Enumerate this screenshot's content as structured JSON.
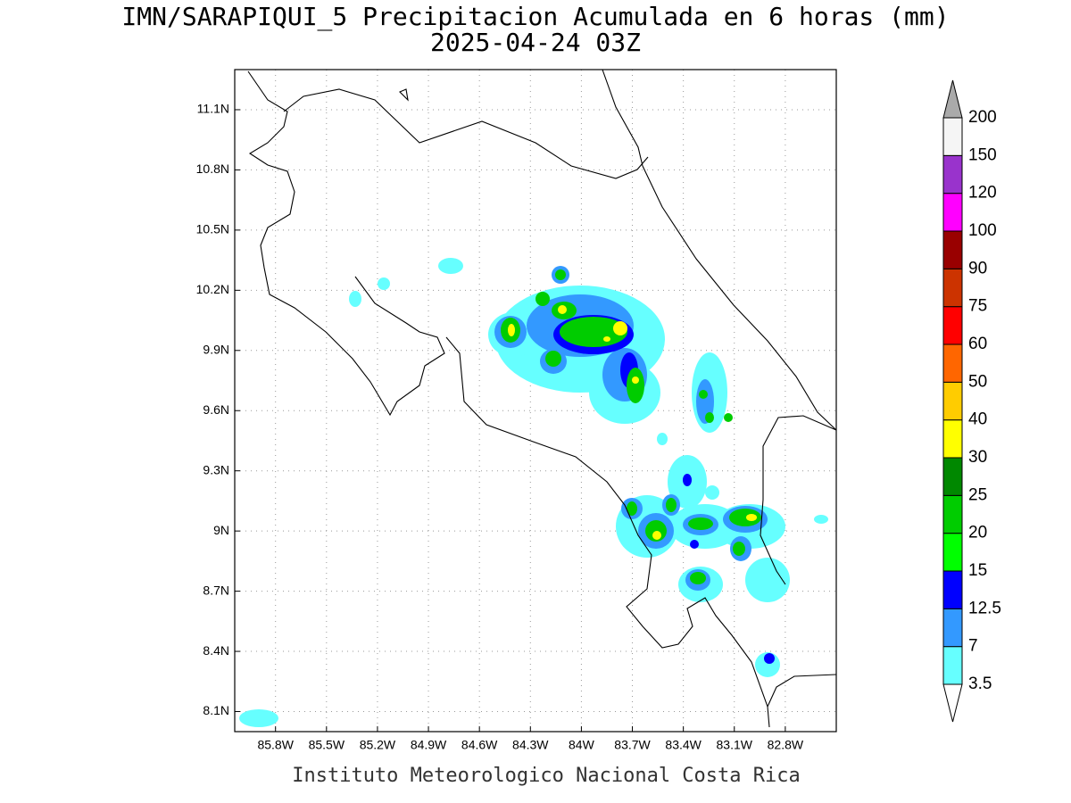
{
  "chart_data": {
    "type": "map",
    "title": "IMN/SARAPIQUI_5 Precipitacion Acumulada en 6 horas (mm)",
    "subtitle": "2025-04-24 03Z",
    "footer": "Instituto Meteorologico Nacional Costa Rica",
    "xlim": [
      -86.04,
      -82.5
    ],
    "ylim": [
      8.0,
      11.3
    ],
    "xticks": [
      {
        "value": -85.8,
        "label": "85.8W"
      },
      {
        "value": -85.5,
        "label": "85.5W"
      },
      {
        "value": -85.2,
        "label": "85.2W"
      },
      {
        "value": -84.9,
        "label": "84.9W"
      },
      {
        "value": -84.6,
        "label": "84.6W"
      },
      {
        "value": -84.3,
        "label": "84.3W"
      },
      {
        "value": -84.0,
        "label": "84W"
      },
      {
        "value": -83.7,
        "label": "83.7W"
      },
      {
        "value": -83.4,
        "label": "83.4W"
      },
      {
        "value": -83.1,
        "label": "83.1W"
      },
      {
        "value": -82.8,
        "label": "82.8W"
      }
    ],
    "yticks": [
      {
        "value": 8.1,
        "label": "8.1N"
      },
      {
        "value": 8.4,
        "label": "8.4N"
      },
      {
        "value": 8.7,
        "label": "8.7N"
      },
      {
        "value": 9.0,
        "label": "9N"
      },
      {
        "value": 9.3,
        "label": "9.3N"
      },
      {
        "value": 9.6,
        "label": "9.6N"
      },
      {
        "value": 9.9,
        "label": "9.9N"
      },
      {
        "value": 10.2,
        "label": "10.2N"
      },
      {
        "value": 10.5,
        "label": "10.5N"
      },
      {
        "value": 10.8,
        "label": "10.8N"
      },
      {
        "value": 11.1,
        "label": "11.1N"
      }
    ],
    "grid": true,
    "colorbar": {
      "levels": [
        3.5,
        7,
        12.5,
        15,
        20,
        25,
        30,
        40,
        50,
        60,
        75,
        90,
        100,
        120,
        150,
        200
      ],
      "colors": [
        "#66ffff",
        "#3399ff",
        "#0000ff",
        "#00ff00",
        "#00cc00",
        "#008800",
        "#ffff00",
        "#ffcc00",
        "#ff6600",
        "#ff0000",
        "#cc3300",
        "#990000",
        "#ff00ff",
        "#9933cc",
        "#f5f5f5"
      ],
      "under_color": "#ffffff",
      "over_color": "#aaaaaa"
    }
  }
}
